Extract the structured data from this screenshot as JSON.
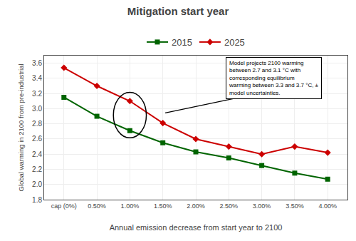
{
  "chart_data": {
    "type": "line",
    "title": "Mitigation start year",
    "x_label": "Annual emission decrease from start year to 2100",
    "y_label": "Global warming in 2100 from pre-industrial",
    "x": [
      0,
      0.5,
      1.0,
      1.5,
      2.0,
      2.5,
      3.0,
      3.5,
      4.0
    ],
    "series": [
      {
        "name": "2015",
        "color": "#006400",
        "marker": "square",
        "line_style": "solid",
        "values": [
          3.15,
          2.9,
          2.71,
          2.55,
          2.43,
          2.35,
          2.25,
          2.15,
          2.07
        ]
      },
      {
        "name": "2025",
        "color": "#cc0000",
        "marker": "diamond",
        "line_style": "solid",
        "values": [
          3.54,
          3.3,
          3.1,
          2.81,
          2.6,
          2.5,
          2.4,
          2.5,
          2.42
        ]
      }
    ],
    "xlim": [
      -0.3,
      4.3
    ],
    "xticks": [
      {
        "value": 0,
        "label": "cap (0%)"
      },
      {
        "value": 0.5,
        "label": "0.50%"
      },
      {
        "value": 1.0,
        "label": "1.00%"
      },
      {
        "value": 1.5,
        "label": "1.50%"
      },
      {
        "value": 2.0,
        "label": "2.00%"
      },
      {
        "value": 2.5,
        "label": "2.50%"
      },
      {
        "value": 3.0,
        "label": "3.00%"
      },
      {
        "value": 3.5,
        "label": "3.50%"
      },
      {
        "value": 4.0,
        "label": "4.00%"
      }
    ],
    "ylim": [
      1.8,
      3.7
    ],
    "yticks": [
      {
        "value": 1.8,
        "label": "1.8"
      },
      {
        "value": 2.0,
        "label": "2.0"
      },
      {
        "value": 2.2,
        "label": "2.2"
      },
      {
        "value": 2.4,
        "label": "2.4"
      },
      {
        "value": 2.6,
        "label": "2.6"
      },
      {
        "value": 2.8,
        "label": "2.8"
      },
      {
        "value": 3.0,
        "label": "3.0"
      },
      {
        "value": 3.2,
        "label": "3.2"
      },
      {
        "value": 3.4,
        "label": "3.4"
      },
      {
        "value": 3.6,
        "label": "3.6"
      }
    ],
    "grid": true,
    "legend": "top",
    "annotations": [
      "Model projects 2100 warming\nbetween 2.7 and 3.1 °C with\ncorresponding equilibrium\nwarming between 3.3 and 3.7 °C, ±\nmodel uncertainties."
    ]
  }
}
